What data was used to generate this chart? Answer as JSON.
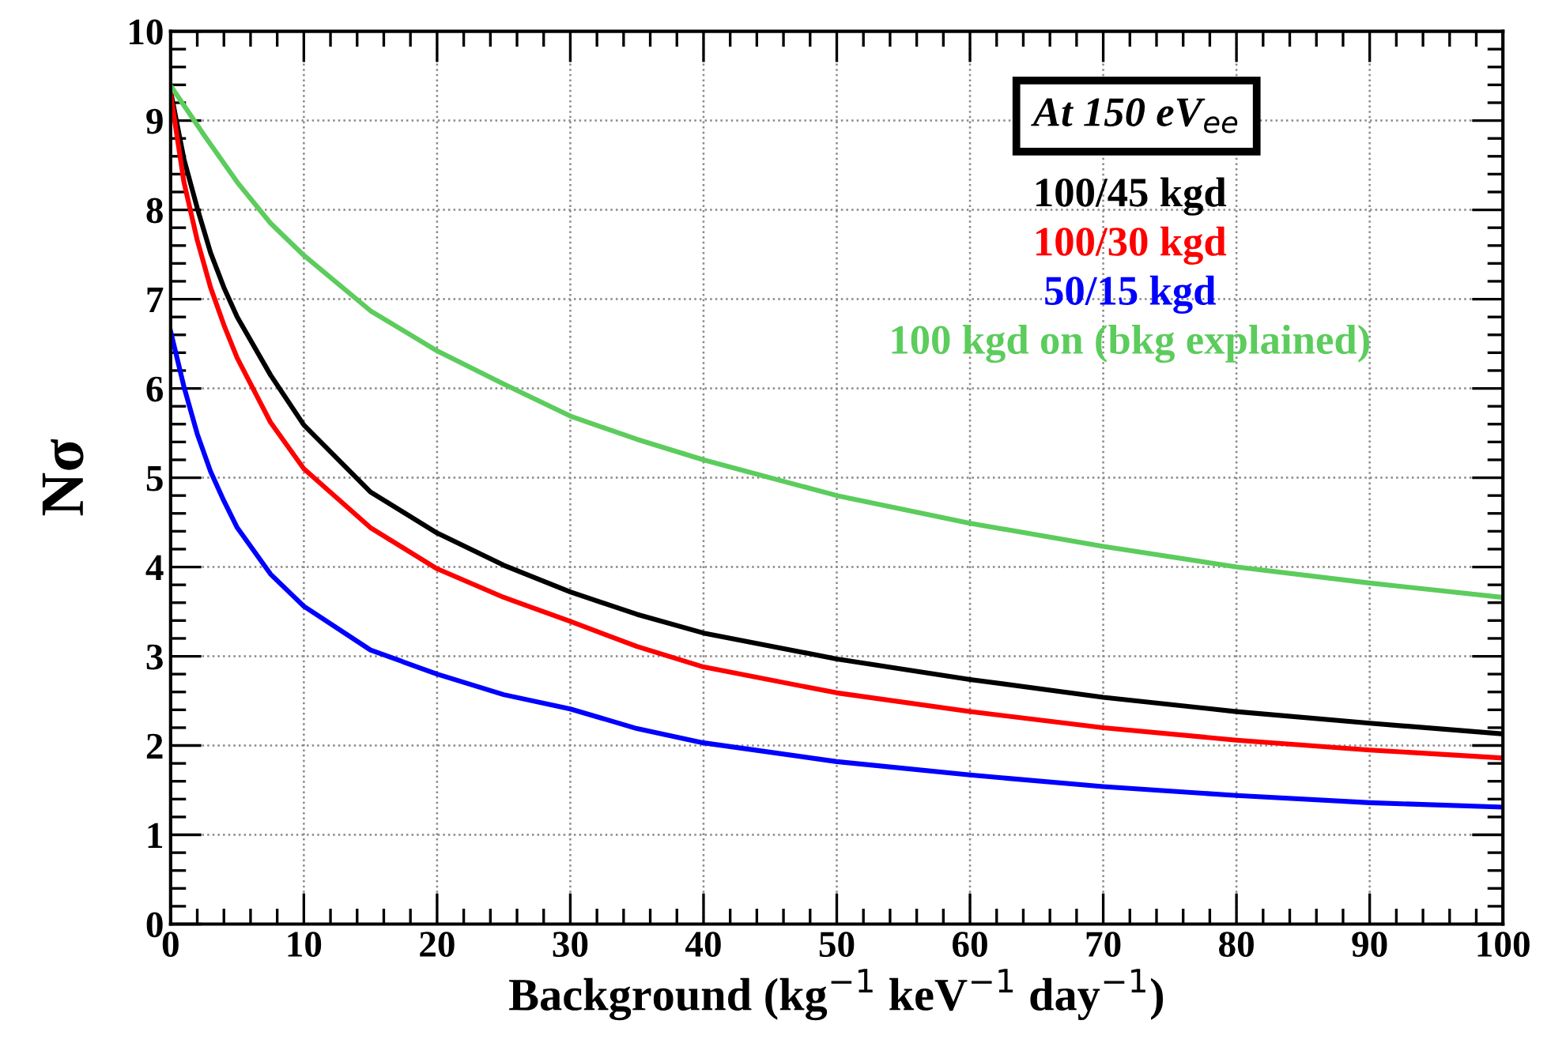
{
  "chart_data": {
    "type": "line",
    "xlabel": "Background (kg$^{−1}$ keV$^{−1}$ day$^{−1}$)",
    "ylabel": "Nσ",
    "legend_title": "At 150 eV$_{ee}$",
    "legend": "top right",
    "grid": true,
    "line_style": "solid",
    "marker": "none",
    "xlim": [
      0,
      100
    ],
    "xticks": [
      0,
      10,
      20,
      30,
      40,
      50,
      60,
      70,
      80,
      90,
      100
    ],
    "ylim": [
      0,
      10
    ],
    "yticks": [
      0,
      1,
      2,
      3,
      4,
      5,
      6,
      7,
      8,
      9,
      10
    ],
    "series": [
      {
        "name": "100/45 kgd",
        "color": "#000000",
        "x": [
          0,
          1,
          2,
          3,
          4,
          5,
          7.5,
          10,
          15,
          20,
          25,
          30,
          35,
          40,
          50,
          60,
          70,
          80,
          90,
          100
        ],
        "values": [
          9.33,
          8.57,
          8.02,
          7.52,
          7.13,
          6.8,
          6.15,
          5.59,
          4.84,
          4.38,
          4.02,
          3.72,
          3.47,
          3.26,
          2.97,
          2.74,
          2.54,
          2.38,
          2.25,
          2.13
        ]
      },
      {
        "name": "100/30 kgd",
        "color": "#ff0000",
        "x": [
          0,
          1,
          2,
          3,
          4,
          5,
          7.5,
          10,
          15,
          20,
          25,
          30,
          35,
          40,
          50,
          60,
          70,
          80,
          90,
          100
        ],
        "values": [
          9.3,
          8.31,
          7.66,
          7.13,
          6.71,
          6.34,
          5.62,
          5.1,
          4.44,
          3.98,
          3.66,
          3.39,
          3.11,
          2.88,
          2.59,
          2.38,
          2.2,
          2.06,
          1.95,
          1.86
        ]
      },
      {
        "name": "50/15 kgd",
        "color": "#0000ff",
        "x": [
          0,
          1,
          2,
          3,
          4,
          5,
          7.5,
          10,
          15,
          20,
          25,
          30,
          35,
          40,
          50,
          60,
          70,
          80,
          90,
          100
        ],
        "values": [
          6.64,
          6.02,
          5.49,
          5.07,
          4.74,
          4.44,
          3.92,
          3.56,
          3.07,
          2.8,
          2.57,
          2.41,
          2.19,
          2.03,
          1.82,
          1.67,
          1.54,
          1.44,
          1.36,
          1.31
        ]
      },
      {
        "name": "100 kgd on (bkg explained)",
        "color": "#5ccc5c",
        "x": [
          0,
          2.5,
          5,
          7.5,
          10,
          15,
          20,
          25,
          30,
          35,
          40,
          50,
          60,
          70,
          80,
          90,
          100
        ],
        "values": [
          9.39,
          8.84,
          8.31,
          7.85,
          7.49,
          6.87,
          6.42,
          6.05,
          5.69,
          5.43,
          5.2,
          4.8,
          4.49,
          4.23,
          4.0,
          3.82,
          3.66
        ]
      }
    ]
  }
}
